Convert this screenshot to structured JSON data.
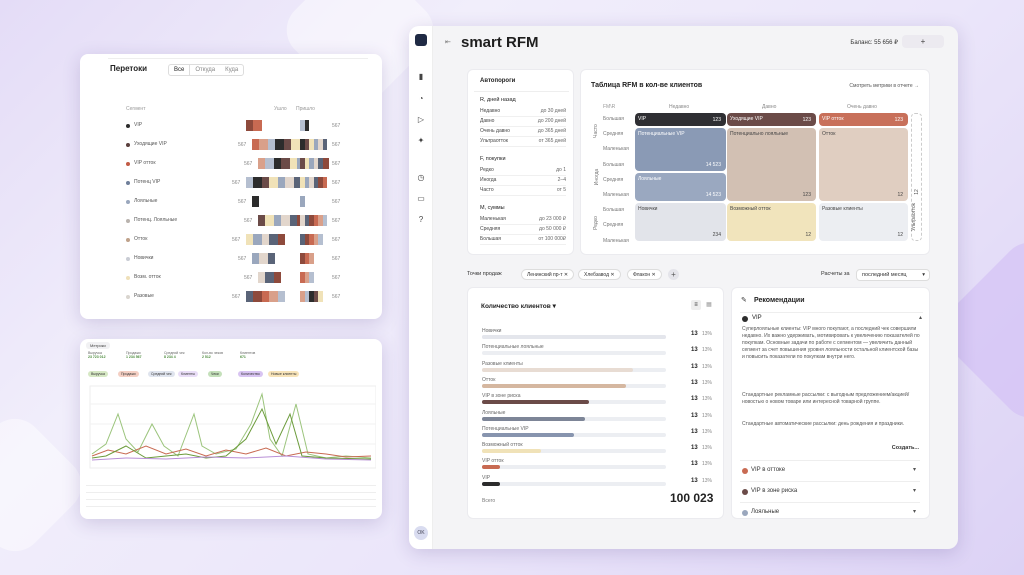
{
  "flows": {
    "title": "Перетоки",
    "filters": [
      "Все",
      "Откуда",
      "Куда"
    ],
    "col_segment": "Сегмент",
    "col_out": "Ушло",
    "col_in": "Пришло",
    "rows": [
      {
        "label": "VIP",
        "color": "#2b2b2b",
        "left_num": "",
        "right_num": "567"
      },
      {
        "label": "Уходящие VIP",
        "color": "#5a3f3d",
        "left_num": "567",
        "right_num": "567"
      },
      {
        "label": "VIP отток",
        "color": "#c25b45",
        "left_num": "567",
        "right_num": "567"
      },
      {
        "label": "Потенц VIP",
        "color": "#6f7f9a",
        "left_num": "567",
        "right_num": "567"
      },
      {
        "label": "Лояльные",
        "color": "#9aa7bd",
        "left_num": "567",
        "right_num": "567"
      },
      {
        "label": "Потенц. Лояльные",
        "color": "#b9b3ae",
        "left_num": "567",
        "right_num": "567"
      },
      {
        "label": "Отток",
        "color": "#bfa28b",
        "left_num": "567",
        "right_num": "567"
      },
      {
        "label": "Новички",
        "color": "#c9ccd4",
        "left_num": "567",
        "right_num": "567"
      },
      {
        "label": "Возм. отток",
        "color": "#efe0b9",
        "left_num": "567",
        "right_num": "567"
      },
      {
        "label": "Разовые",
        "color": "#d9d5cf",
        "left_num": "567",
        "right_num": "567"
      }
    ]
  },
  "lines_card": {
    "tab": "Метрики",
    "kpis": [
      {
        "label": "Выручка",
        "value": "23 723 012"
      },
      {
        "label": "Продажи",
        "value": "1 234 567"
      },
      {
        "label": "Средний чек",
        "value": "8 234 4"
      },
      {
        "label": "Кол-во чеков",
        "value": "2 512"
      },
      {
        "label": "Клиентов",
        "value": "671"
      }
    ],
    "chips": [
      "Выручка",
      "Продажи",
      "Средний чек",
      "Клиенты",
      "Чеки",
      "Количество",
      "Новые клиенты"
    ]
  },
  "app": {
    "title": "smart RFM",
    "balance": "Баланс: 55 656 ₽",
    "plus": "+",
    "user": "OK"
  },
  "autothresholds": {
    "title": "Автопороги",
    "r_title": "R, дней назад",
    "r_rows": [
      {
        "k": "Недавно",
        "v": "до 30 дней"
      },
      {
        "k": "Давно",
        "v": "до 200 дней"
      },
      {
        "k": "Очень давно",
        "v": "до 365 дней"
      },
      {
        "k": "Ультраотток",
        "v": "от 365 дней"
      }
    ],
    "f_title": "F, покупки",
    "f_rows": [
      {
        "k": "Редко",
        "v": "до 1"
      },
      {
        "k": "Иногда",
        "v": "2–4"
      },
      {
        "k": "Часто",
        "v": "от 5"
      }
    ],
    "m_title": "M, суммы",
    "m_rows": [
      {
        "k": "Маленькая",
        "v": "до 23 000 ₽"
      },
      {
        "k": "Средняя",
        "v": "до 50 000 ₽"
      },
      {
        "k": "Большая",
        "v": "от 100 000₽"
      }
    ]
  },
  "rfm": {
    "title": "Таблица RFM в кол-ве клиентов",
    "link": "Смотреть метрики в отчете →",
    "corner": "FM\\R",
    "cols": [
      "Недавно",
      "Давно",
      "Очень давно"
    ],
    "m_labels": [
      "Большая",
      "Средняя",
      "Маленькая",
      "Большая",
      "Средняя",
      "Маленькая",
      "Большая",
      "Средняя",
      "Маленькая"
    ],
    "f_labels": [
      "Часто",
      "Иногда",
      "Редко"
    ],
    "ultra": "Ультраотток",
    "ultra_num": "12",
    "cells": {
      "vip": {
        "label": "VIP",
        "num": "123"
      },
      "leaving": {
        "label": "Уходящие VIP",
        "num": "123"
      },
      "vipout": {
        "label": "VIP отток",
        "num": "123"
      },
      "potvip": {
        "label": "Потенциальные VIP",
        "num": "14 523"
      },
      "potloyal": {
        "label": "Потенциально лояльные",
        "num": "123"
      },
      "churn": {
        "label": "Отток",
        "num": "12"
      },
      "loyal": {
        "label": "Лояльные",
        "num": "14 523"
      },
      "newbie": {
        "label": "Новички",
        "num": "234"
      },
      "possible": {
        "label": "Возможный отток",
        "num": "12"
      },
      "once": {
        "label": "Разовые клиенты",
        "num": "12"
      }
    }
  },
  "filters": {
    "label": "Точки продаж",
    "tags": [
      "Ленинский пр-т",
      "Хлебзавод",
      "Флакон"
    ],
    "calc_label": "Расчеты за",
    "calc_value": "последний месяц"
  },
  "clients": {
    "title": "Количество клиентов",
    "total_label": "Всего",
    "total": "100 023",
    "rows": [
      {
        "label": "Новички",
        "num": "13",
        "pct": "13%",
        "color": "#e4e6ec",
        "fill": 1.0
      },
      {
        "label": "Потенциальные лояльные",
        "num": "13",
        "pct": "13%",
        "color": "#cfc3b8",
        "fill": 0.0
      },
      {
        "label": "Разовые клиенты",
        "num": "13",
        "pct": "13%",
        "color": "#e8dcd3",
        "fill": 0.82
      },
      {
        "label": "Отток",
        "num": "13",
        "pct": "13%",
        "color": "#d5b7a0",
        "fill": 0.78
      },
      {
        "label": "VIP в зоне риска",
        "num": "13",
        "pct": "13%",
        "color": "#6b4b48",
        "fill": 0.58
      },
      {
        "label": "Лояльные",
        "num": "13",
        "pct": "13%",
        "color": "#7d8597",
        "fill": 0.56
      },
      {
        "label": "Потенциальные VIP",
        "num": "13",
        "pct": "13%",
        "color": "#8794ae",
        "fill": 0.5
      },
      {
        "label": "Возможный отток",
        "num": "13",
        "pct": "13%",
        "color": "#f0e2b8",
        "fill": 0.32
      },
      {
        "label": "VIP отток",
        "num": "13",
        "pct": "13%",
        "color": "#c86a52",
        "fill": 0.1
      },
      {
        "label": "VIP",
        "num": "13",
        "pct": "13%",
        "color": "#2c2c2c",
        "fill": 0.1
      }
    ]
  },
  "recs": {
    "title": "Рекомендации",
    "open_label": "VIP",
    "open_color": "#2c2c2c",
    "p1": "Суперлояльные клиенты: VIP много покупают, а последний чек совершили недавно. Их важно удерживать, мотивировать к увеличению показателей по покупкам. Основные задачи по работе с сегментом — увеличить данный сегмент за счет повышения уровня лояльности остальной клиентской базы и повысить показатели по покупкам внутри него.",
    "p2": "Стандартные рекламные рассылки: с выгодным предложением/акцией/новостью о новом товаре или интересной товарной группе.",
    "p3": "Стандартные автоматические рассылки: день рождения и праздники.",
    "create": "Создать...",
    "items": [
      {
        "label": "VIP в оттоке",
        "color": "#c86a52"
      },
      {
        "label": "VIP в зоне риска",
        "color": "#6b4b48"
      },
      {
        "label": "Лояльные",
        "color": "#9aa7bd"
      }
    ]
  }
}
